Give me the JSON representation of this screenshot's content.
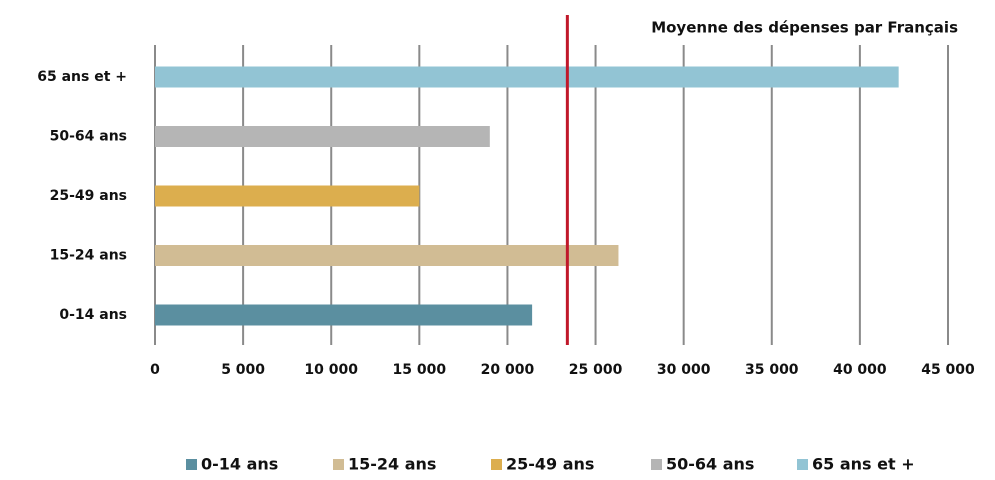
{
  "chart_data": {
    "type": "bar",
    "orientation": "horizontal",
    "categories": [
      "0-14 ans",
      "15-24 ans",
      "25-49 ans",
      "50-64 ans",
      "65 ans et +"
    ],
    "values": [
      21400,
      26300,
      15000,
      19000,
      42200
    ],
    "colors": [
      "#5b8fa0",
      "#d1bc94",
      "#dcae4e",
      "#b5b5b5",
      "#92c4d4"
    ],
    "xlim": [
      0,
      45000
    ],
    "xticks": [
      0,
      {
        "value": 5000,
        "label": "5 000"
      },
      {
        "value": 10000,
        "label": "10 000"
      },
      {
        "value": 15000,
        "label": "15 000"
      },
      {
        "value": 20000,
        "label": "20 000"
      },
      {
        "value": 25000,
        "label": "25 000"
      },
      {
        "value": 30000,
        "label": "30 000"
      },
      {
        "value": 35000,
        "label": "35 000"
      },
      {
        "value": 40000,
        "label": "40 000"
      },
      {
        "value": 45000,
        "label": "45 000"
      }
    ],
    "grid": true,
    "reference_line": {
      "value": 23400,
      "label": "Moyenne des dépenses par Français",
      "color": "#c0182a"
    },
    "legend": "bottom"
  }
}
